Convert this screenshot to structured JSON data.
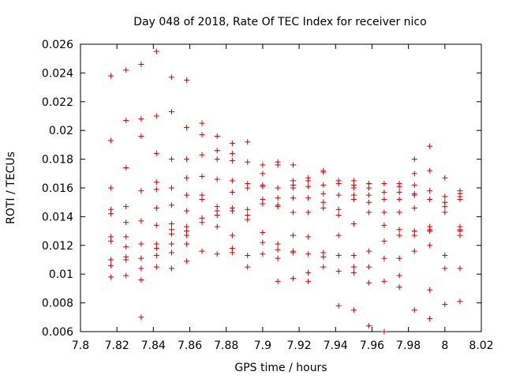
{
  "chart_data": {
    "type": "scatter",
    "title": "Day 048 of 2018, Rate Of TEC Index for receiver nico",
    "xlabel": "GPS time / hours",
    "ylabel": "ROTI / TECUs",
    "xlim": [
      7.8,
      8.02
    ],
    "ylim": [
      0.006,
      0.026
    ],
    "grid": false,
    "legend": "none",
    "marker": "plus",
    "marker_color": "#cc0000",
    "axis_color": "#000000",
    "xticks": [
      {
        "value": 7.8,
        "label": "7.8"
      },
      {
        "value": 7.82,
        "label": "7.82"
      },
      {
        "value": 7.84,
        "label": "7.84"
      },
      {
        "value": 7.86,
        "label": "7.86"
      },
      {
        "value": 7.88,
        "label": "7.88"
      },
      {
        "value": 7.9,
        "label": "7.9"
      },
      {
        "value": 7.92,
        "label": "7.92"
      },
      {
        "value": 7.94,
        "label": "7.94"
      },
      {
        "value": 7.96,
        "label": "7.96"
      },
      {
        "value": 7.98,
        "label": "7.98"
      },
      {
        "value": 8.0,
        "label": "8"
      },
      {
        "value": 8.02,
        "label": "8.02"
      }
    ],
    "yticks": [
      {
        "value": 0.006,
        "label": "0.006"
      },
      {
        "value": 0.008,
        "label": "0.008"
      },
      {
        "value": 0.01,
        "label": "0.01"
      },
      {
        "value": 0.012,
        "label": "0.012"
      },
      {
        "value": 0.014,
        "label": "0.014"
      },
      {
        "value": 0.016,
        "label": "0.016"
      },
      {
        "value": 0.018,
        "label": "0.018"
      },
      {
        "value": 0.02,
        "label": "0.02"
      },
      {
        "value": 0.022,
        "label": "0.022"
      },
      {
        "value": 0.024,
        "label": "0.024"
      },
      {
        "value": 0.026,
        "label": "0.026"
      }
    ],
    "series": [
      {
        "name": "ROTI",
        "points": [
          [
            7.8167,
            0.0238
          ],
          [
            7.8167,
            0.0193
          ],
          [
            7.8167,
            0.016
          ],
          [
            7.8167,
            0.0145
          ],
          [
            7.8167,
            0.0142
          ],
          [
            7.8167,
            0.0126
          ],
          [
            7.8167,
            0.0123
          ],
          [
            7.8167,
            0.011
          ],
          [
            7.8167,
            0.0106
          ],
          [
            7.8167,
            0.0098
          ],
          [
            7.825,
            0.0242
          ],
          [
            7.825,
            0.0207
          ],
          [
            7.825,
            0.0174
          ],
          [
            7.825,
            0.0147
          ],
          [
            7.825,
            0.0136
          ],
          [
            7.825,
            0.0126
          ],
          [
            7.825,
            0.0119
          ],
          [
            7.825,
            0.0112
          ],
          [
            7.825,
            0.011
          ],
          [
            7.825,
            0.0099
          ],
          [
            7.8333,
            0.0246
          ],
          [
            7.8333,
            0.0208
          ],
          [
            7.8333,
            0.0196
          ],
          [
            7.8333,
            0.0158
          ],
          [
            7.8333,
            0.0137
          ],
          [
            7.8333,
            0.0121
          ],
          [
            7.8333,
            0.0111
          ],
          [
            7.8333,
            0.0104
          ],
          [
            7.8333,
            0.0096
          ],
          [
            7.8333,
            0.007
          ],
          [
            7.8417,
            0.0255
          ],
          [
            7.8417,
            0.021
          ],
          [
            7.8417,
            0.0184
          ],
          [
            7.8417,
            0.0164
          ],
          [
            7.8417,
            0.0159
          ],
          [
            7.8417,
            0.0146
          ],
          [
            7.8417,
            0.0134
          ],
          [
            7.8417,
            0.0121
          ],
          [
            7.8417,
            0.0118
          ],
          [
            7.8417,
            0.0113
          ],
          [
            7.8417,
            0.0105
          ],
          [
            7.85,
            0.0237
          ],
          [
            7.85,
            0.0213
          ],
          [
            7.85,
            0.018
          ],
          [
            7.85,
            0.016
          ],
          [
            7.85,
            0.0148
          ],
          [
            7.85,
            0.0135
          ],
          [
            7.85,
            0.0131
          ],
          [
            7.85,
            0.0128
          ],
          [
            7.85,
            0.0121
          ],
          [
            7.85,
            0.0115
          ],
          [
            7.85,
            0.0104
          ],
          [
            7.8583,
            0.0235
          ],
          [
            7.8583,
            0.0202
          ],
          [
            7.8583,
            0.018
          ],
          [
            7.8583,
            0.0167
          ],
          [
            7.8583,
            0.0155
          ],
          [
            7.8583,
            0.0144
          ],
          [
            7.8583,
            0.0133
          ],
          [
            7.8583,
            0.013
          ],
          [
            7.8583,
            0.0127
          ],
          [
            7.8583,
            0.0121
          ],
          [
            7.8583,
            0.0109
          ],
          [
            7.8667,
            0.0205
          ],
          [
            7.8667,
            0.0197
          ],
          [
            7.8667,
            0.0183
          ],
          [
            7.8667,
            0.0168
          ],
          [
            7.8667,
            0.0155
          ],
          [
            7.8667,
            0.0152
          ],
          [
            7.8667,
            0.0139
          ],
          [
            7.8667,
            0.0136
          ],
          [
            7.8667,
            0.0116
          ],
          [
            7.875,
            0.0196
          ],
          [
            7.875,
            0.0186
          ],
          [
            7.875,
            0.018
          ],
          [
            7.875,
            0.0166
          ],
          [
            7.875,
            0.0147
          ],
          [
            7.875,
            0.0144
          ],
          [
            7.875,
            0.0141
          ],
          [
            7.875,
            0.0133
          ],
          [
            7.875,
            0.0114
          ],
          [
            7.8833,
            0.0191
          ],
          [
            7.8833,
            0.0184
          ],
          [
            7.8833,
            0.0179
          ],
          [
            7.8833,
            0.0165
          ],
          [
            7.8833,
            0.0157
          ],
          [
            7.8833,
            0.0146
          ],
          [
            7.8833,
            0.0144
          ],
          [
            7.8833,
            0.0127
          ],
          [
            7.8833,
            0.0118
          ],
          [
            7.8833,
            0.0115
          ],
          [
            7.8917,
            0.0192
          ],
          [
            7.8917,
            0.0178
          ],
          [
            7.8917,
            0.0163
          ],
          [
            7.8917,
            0.016
          ],
          [
            7.8917,
            0.0145
          ],
          [
            7.8917,
            0.0141
          ],
          [
            7.8917,
            0.0138
          ],
          [
            7.8917,
            0.0113
          ],
          [
            7.8917,
            0.0105
          ],
          [
            7.9,
            0.0176
          ],
          [
            7.9,
            0.017
          ],
          [
            7.9,
            0.0162
          ],
          [
            7.9,
            0.0161
          ],
          [
            7.9,
            0.0152
          ],
          [
            7.9,
            0.0149
          ],
          [
            7.9,
            0.0129
          ],
          [
            7.9,
            0.0122
          ],
          [
            7.9,
            0.0114
          ],
          [
            7.9083,
            0.0178
          ],
          [
            7.9083,
            0.0176
          ],
          [
            7.9083,
            0.016
          ],
          [
            7.9083,
            0.0153
          ],
          [
            7.9083,
            0.0148
          ],
          [
            7.9083,
            0.0147
          ],
          [
            7.9083,
            0.0121
          ],
          [
            7.9083,
            0.0117
          ],
          [
            7.9083,
            0.0111
          ],
          [
            7.9083,
            0.0095
          ],
          [
            7.9167,
            0.0176
          ],
          [
            7.9167,
            0.0165
          ],
          [
            7.9167,
            0.0162
          ],
          [
            7.9167,
            0.016
          ],
          [
            7.9167,
            0.0153
          ],
          [
            7.9167,
            0.0143
          ],
          [
            7.9167,
            0.0127
          ],
          [
            7.9167,
            0.0116
          ],
          [
            7.9167,
            0.0115
          ],
          [
            7.9167,
            0.0097
          ],
          [
            7.925,
            0.0167
          ],
          [
            7.925,
            0.0165
          ],
          [
            7.925,
            0.0161
          ],
          [
            7.925,
            0.0153
          ],
          [
            7.925,
            0.0143
          ],
          [
            7.925,
            0.0126
          ],
          [
            7.925,
            0.0114
          ],
          [
            7.925,
            0.0101
          ],
          [
            7.925,
            0.0095
          ],
          [
            7.9333,
            0.0172
          ],
          [
            7.9333,
            0.0171
          ],
          [
            7.9333,
            0.0162
          ],
          [
            7.9333,
            0.0156
          ],
          [
            7.9333,
            0.015
          ],
          [
            7.9333,
            0.0146
          ],
          [
            7.9333,
            0.0115
          ],
          [
            7.9333,
            0.0112
          ],
          [
            7.9333,
            0.0105
          ],
          [
            7.9417,
            0.0165
          ],
          [
            7.9417,
            0.0163
          ],
          [
            7.9417,
            0.0155
          ],
          [
            7.9417,
            0.0145
          ],
          [
            7.9417,
            0.0141
          ],
          [
            7.9417,
            0.0127
          ],
          [
            7.9417,
            0.0113
          ],
          [
            7.9417,
            0.0102
          ],
          [
            7.9417,
            0.0078
          ],
          [
            7.95,
            0.0165
          ],
          [
            7.95,
            0.0162
          ],
          [
            7.95,
            0.016
          ],
          [
            7.95,
            0.0155
          ],
          [
            7.95,
            0.0152
          ],
          [
            7.95,
            0.0135
          ],
          [
            7.95,
            0.0113
          ],
          [
            7.95,
            0.0105
          ],
          [
            7.95,
            0.0101
          ],
          [
            7.95,
            0.0075
          ],
          [
            7.9583,
            0.0163
          ],
          [
            7.9583,
            0.016
          ],
          [
            7.9583,
            0.0155
          ],
          [
            7.9583,
            0.015
          ],
          [
            7.9583,
            0.0143
          ],
          [
            7.9583,
            0.0116
          ],
          [
            7.9583,
            0.0105
          ],
          [
            7.9583,
            0.0094
          ],
          [
            7.9583,
            0.0064
          ],
          [
            7.9667,
            0.0163
          ],
          [
            7.9667,
            0.0157
          ],
          [
            7.9667,
            0.0152
          ],
          [
            7.9667,
            0.0143
          ],
          [
            7.9667,
            0.0134
          ],
          [
            7.9667,
            0.0123
          ],
          [
            7.9667,
            0.0111
          ],
          [
            7.9667,
            0.0095
          ],
          [
            7.9667,
            0.006
          ],
          [
            7.975,
            0.0163
          ],
          [
            7.975,
            0.0161
          ],
          [
            7.975,
            0.0157
          ],
          [
            7.975,
            0.0152
          ],
          [
            7.975,
            0.0143
          ],
          [
            7.975,
            0.0131
          ],
          [
            7.975,
            0.0127
          ],
          [
            7.975,
            0.0111
          ],
          [
            7.975,
            0.0099
          ],
          [
            7.975,
            0.0091
          ],
          [
            7.9833,
            0.018
          ],
          [
            7.9833,
            0.017
          ],
          [
            7.9833,
            0.0162
          ],
          [
            7.9833,
            0.0156
          ],
          [
            7.9833,
            0.0155
          ],
          [
            7.9833,
            0.0146
          ],
          [
            7.9833,
            0.013
          ],
          [
            7.9833,
            0.0127
          ],
          [
            7.9833,
            0.0116
          ],
          [
            7.9833,
            0.0075
          ],
          [
            7.9917,
            0.0189
          ],
          [
            7.9917,
            0.0172
          ],
          [
            7.9917,
            0.0158
          ],
          [
            7.9917,
            0.0152
          ],
          [
            7.9917,
            0.0133
          ],
          [
            7.9917,
            0.0131
          ],
          [
            7.9917,
            0.013
          ],
          [
            7.9917,
            0.012
          ],
          [
            7.9917,
            0.0089
          ],
          [
            7.9917,
            0.0069
          ],
          [
            8.0,
            0.0167
          ],
          [
            8.0,
            0.0154
          ],
          [
            8.0,
            0.015
          ],
          [
            8.0,
            0.0147
          ],
          [
            8.0,
            0.0143
          ],
          [
            8.0,
            0.0113
          ],
          [
            8.0,
            0.0104
          ],
          [
            8.0,
            0.0079
          ],
          [
            8.0083,
            0.0158
          ],
          [
            8.0083,
            0.0156
          ],
          [
            8.0083,
            0.0154
          ],
          [
            8.0083,
            0.0152
          ],
          [
            8.0083,
            0.0133
          ],
          [
            8.0083,
            0.0131
          ],
          [
            8.0083,
            0.013
          ],
          [
            8.0083,
            0.0127
          ],
          [
            8.0083,
            0.0104
          ],
          [
            8.0083,
            0.0081
          ]
        ]
      }
    ]
  }
}
